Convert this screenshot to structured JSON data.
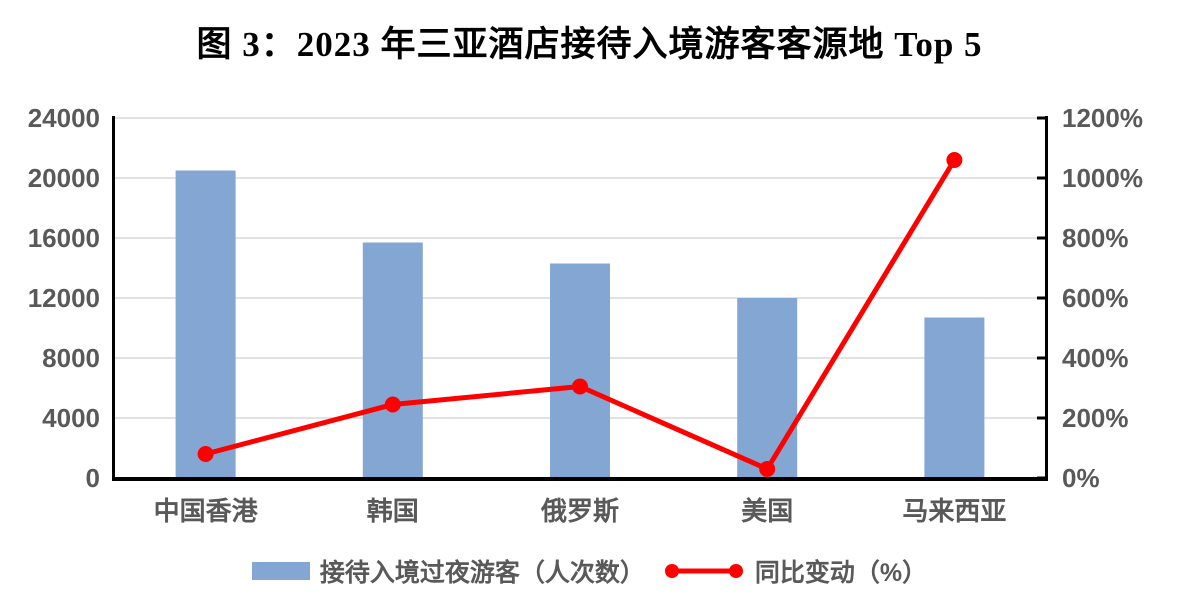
{
  "chart_data": {
    "type": "combo-bar-line",
    "title": "图 3：2023 年三亚酒店接待入境游客客源地 Top 5",
    "categories": [
      "中国香港",
      "韩国",
      "俄罗斯",
      "美国",
      "马来西亚"
    ],
    "series": [
      {
        "name": "接待入境过夜游客（人次数）",
        "type": "bar",
        "axis": "left",
        "color": "#84A6D2",
        "values": [
          20500,
          15700,
          14300,
          12000,
          10700
        ]
      },
      {
        "name": "同比变动（%）",
        "type": "line",
        "axis": "right",
        "color": "#FF0000",
        "values": [
          80,
          245,
          305,
          30,
          1060
        ]
      }
    ],
    "left_axis": {
      "min": 0,
      "max": 24000,
      "step": 4000,
      "tick_labels": [
        "0",
        "4000",
        "8000",
        "12000",
        "16000",
        "20000",
        "24000"
      ]
    },
    "right_axis": {
      "min": 0,
      "max": 1200,
      "step": 200,
      "suffix": "%",
      "tick_labels": [
        "0%",
        "200%",
        "400%",
        "600%",
        "800%",
        "1000%",
        "1200%"
      ]
    },
    "grid": true,
    "legend_position": "bottom"
  },
  "style": {
    "bar_color": "#84A6D2",
    "line_color": "#FF0000",
    "grid_color": "#E2E2E2",
    "axis_color": "#000000",
    "label_color": "#595959",
    "background": "#FFFFFF"
  }
}
